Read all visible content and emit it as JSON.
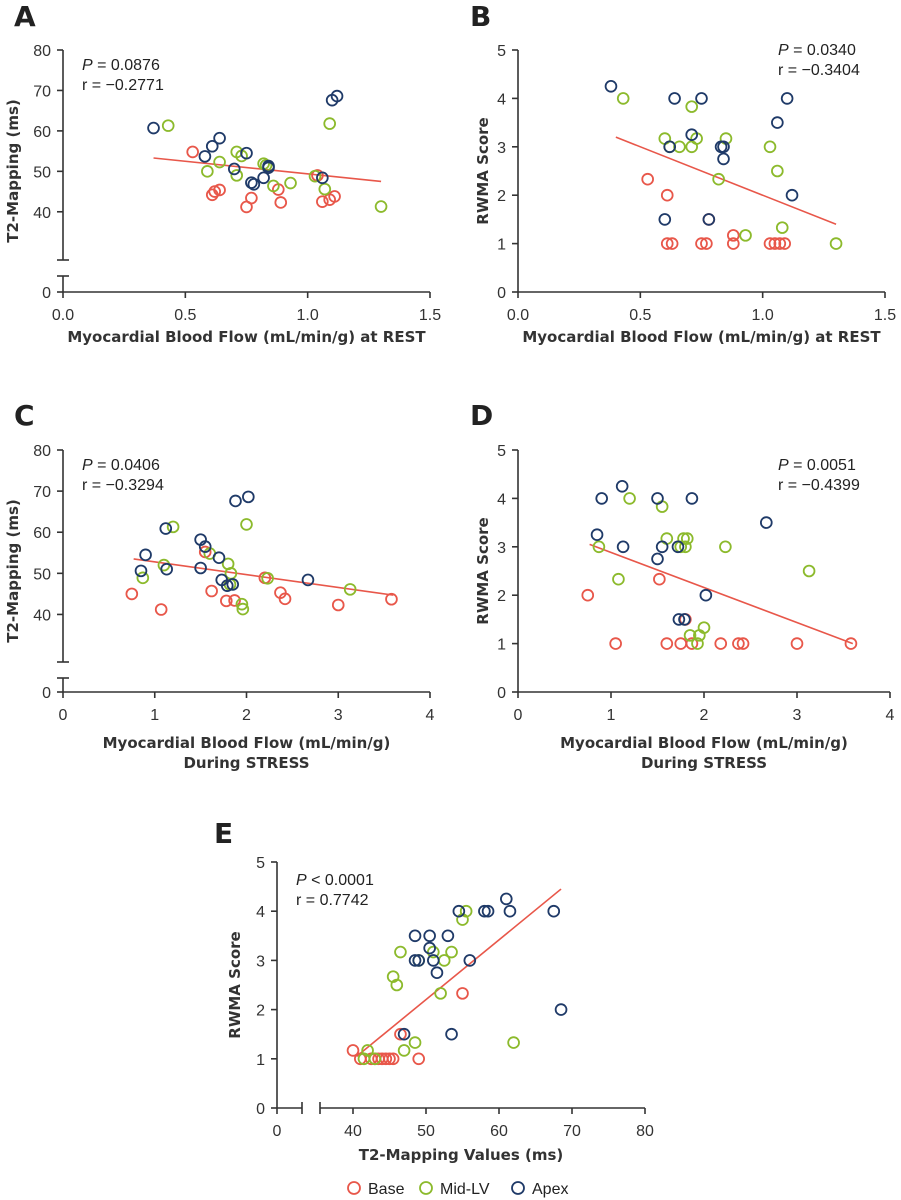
{
  "legend": {
    "title": "",
    "entries": [
      {
        "key": "base",
        "label": "Base"
      },
      {
        "key": "mid",
        "label": "Mid-LV"
      },
      {
        "key": "apex",
        "label": "Apex"
      }
    ]
  },
  "colors": {
    "base": "#e8574a",
    "mid": "#8cba2c",
    "apex": "#1f3a68",
    "fit": "#e8574a"
  },
  "chart_data": [
    {
      "id": "A",
      "type": "scatter",
      "panel_label": "A",
      "xlabel": "Myocardial Blood Flow (mL/min/g) at REST",
      "xlabel2": "",
      "ylabel": "T2-Mapping (ms)",
      "xlim": [
        0,
        1.5
      ],
      "ylim": [
        35,
        80
      ],
      "xticks": [
        0,
        0.5,
        1.0,
        1.5
      ],
      "xtick_labels": [
        "0.0",
        "0.5",
        "1.0",
        "1.5"
      ],
      "yticks": [
        40,
        50,
        60,
        70,
        80
      ],
      "ytick_labels": [
        "40",
        "50",
        "60",
        "70",
        "80"
      ],
      "y_zero_label": "0",
      "p_label": "P",
      "p_text": " = 0.0876",
      "r_text": "r = −0.2771",
      "fit": {
        "x1": 0.37,
        "y1": 53.3,
        "x2": 1.3,
        "y2": 47.5
      },
      "series": {
        "base": [
          [
            0.53,
            54.8
          ],
          [
            0.61,
            44.2
          ],
          [
            0.62,
            45.0
          ],
          [
            0.64,
            45.4
          ],
          [
            0.75,
            41.2
          ],
          [
            0.77,
            43.4
          ],
          [
            0.89,
            42.3
          ],
          [
            0.88,
            45.5
          ],
          [
            1.06,
            42.5
          ],
          [
            1.09,
            43.0
          ],
          [
            1.11,
            43.8
          ],
          [
            1.04,
            49.0
          ]
        ],
        "mid": [
          [
            0.43,
            61.3
          ],
          [
            0.59,
            50.0
          ],
          [
            0.64,
            52.3
          ],
          [
            0.71,
            49.0
          ],
          [
            0.71,
            54.8
          ],
          [
            0.73,
            53.8
          ],
          [
            0.82,
            51.9
          ],
          [
            0.86,
            46.4
          ],
          [
            0.93,
            47.1
          ],
          [
            1.03,
            48.8
          ],
          [
            1.07,
            45.6
          ],
          [
            1.09,
            61.8
          ],
          [
            1.3,
            41.3
          ],
          [
            0.83,
            51.5
          ]
        ],
        "apex": [
          [
            0.37,
            60.7
          ],
          [
            0.58,
            53.7
          ],
          [
            0.61,
            56.2
          ],
          [
            0.64,
            58.2
          ],
          [
            0.7,
            50.6
          ],
          [
            0.75,
            54.5
          ],
          [
            0.77,
            47.2
          ],
          [
            0.78,
            46.8
          ],
          [
            0.82,
            48.4
          ],
          [
            0.84,
            50.9
          ],
          [
            0.84,
            51.3
          ],
          [
            1.06,
            48.4
          ],
          [
            1.1,
            67.6
          ],
          [
            1.12,
            68.6
          ]
        ]
      }
    },
    {
      "id": "B",
      "type": "scatter",
      "panel_label": "B",
      "xlabel": "Myocardial Blood Flow (mL/min/g) at REST",
      "xlabel2": "",
      "ylabel": "RWMA Score",
      "xlim": [
        0,
        1.5
      ],
      "ylim": [
        0,
        5
      ],
      "xticks": [
        0,
        0.5,
        1.0,
        1.5
      ],
      "xtick_labels": [
        "0.0",
        "0.5",
        "1.0",
        "1.5"
      ],
      "yticks": [
        0,
        1,
        2,
        3,
        4,
        5
      ],
      "ytick_labels": [
        "0",
        "1",
        "2",
        "3",
        "4",
        "5"
      ],
      "p_label": "P",
      "p_text": " = 0.0340",
      "r_text": "r = −0.3404",
      "fit": {
        "x1": 0.4,
        "y1": 3.2,
        "x2": 1.3,
        "y2": 1.4
      },
      "series": {
        "base": [
          [
            0.53,
            2.33
          ],
          [
            0.61,
            2.0
          ],
          [
            0.61,
            1.0
          ],
          [
            0.63,
            1.0
          ],
          [
            0.75,
            1.0
          ],
          [
            0.77,
            1.0
          ],
          [
            0.78,
            1.5
          ],
          [
            0.88,
            1.0
          ],
          [
            0.88,
            1.17
          ],
          [
            1.03,
            1.0
          ],
          [
            1.05,
            1.0
          ],
          [
            1.07,
            1.0
          ],
          [
            1.09,
            1.0
          ]
        ],
        "mid": [
          [
            0.43,
            4.0
          ],
          [
            0.6,
            3.17
          ],
          [
            0.62,
            3.0
          ],
          [
            0.66,
            3.0
          ],
          [
            0.71,
            3.83
          ],
          [
            0.71,
            3.0
          ],
          [
            0.73,
            3.17
          ],
          [
            0.85,
            3.17
          ],
          [
            0.82,
            2.33
          ],
          [
            0.93,
            1.17
          ],
          [
            1.03,
            3.0
          ],
          [
            1.06,
            2.5
          ],
          [
            1.08,
            1.33
          ],
          [
            1.3,
            1.0
          ]
        ],
        "apex": [
          [
            0.38,
            4.25
          ],
          [
            0.6,
            1.5
          ],
          [
            0.62,
            3.0
          ],
          [
            0.64,
            4.0
          ],
          [
            0.71,
            3.25
          ],
          [
            0.75,
            4.0
          ],
          [
            0.78,
            1.5
          ],
          [
            0.83,
            3.0
          ],
          [
            0.84,
            3.0
          ],
          [
            0.84,
            2.75
          ],
          [
            1.06,
            3.5
          ],
          [
            1.1,
            4.0
          ],
          [
            1.12,
            2.0
          ]
        ]
      }
    },
    {
      "id": "C",
      "type": "scatter",
      "panel_label": "C",
      "xlabel": "Myocardial Blood Flow (mL/min/g)",
      "xlabel2": "During STRESS",
      "ylabel": "T2-Mapping (ms)",
      "xlim": [
        0,
        4
      ],
      "ylim": [
        35,
        80
      ],
      "xticks": [
        0,
        1,
        2,
        3,
        4
      ],
      "xtick_labels": [
        "0",
        "1",
        "2",
        "3",
        "4"
      ],
      "yticks": [
        40,
        50,
        60,
        70,
        80
      ],
      "ytick_labels": [
        "40",
        "50",
        "60",
        "70",
        "80"
      ],
      "y_zero_label": "0",
      "p_label": "P",
      "p_text": " = 0.0406",
      "r_text": "r = −0.3294",
      "fit": {
        "x1": 0.77,
        "y1": 53.5,
        "x2": 3.6,
        "y2": 44.7
      },
      "series": {
        "base": [
          [
            0.75,
            45.0
          ],
          [
            1.07,
            41.2
          ],
          [
            1.55,
            55.2
          ],
          [
            1.62,
            45.7
          ],
          [
            1.78,
            43.3
          ],
          [
            1.87,
            43.4
          ],
          [
            2.2,
            48.9
          ],
          [
            2.37,
            45.3
          ],
          [
            2.42,
            43.8
          ],
          [
            3.0,
            42.3
          ],
          [
            3.58,
            43.7
          ]
        ],
        "mid": [
          [
            0.87,
            48.9
          ],
          [
            1.1,
            52.0
          ],
          [
            1.2,
            61.3
          ],
          [
            1.6,
            54.8
          ],
          [
            1.8,
            52.3
          ],
          [
            1.82,
            47.3
          ],
          [
            1.83,
            50.0
          ],
          [
            1.95,
            42.5
          ],
          [
            1.96,
            41.3
          ],
          [
            2.0,
            61.9
          ],
          [
            2.23,
            48.8
          ],
          [
            3.13,
            46.1
          ]
        ],
        "apex": [
          [
            0.85,
            50.6
          ],
          [
            0.9,
            54.5
          ],
          [
            1.12,
            60.9
          ],
          [
            1.13,
            51.0
          ],
          [
            1.5,
            51.3
          ],
          [
            1.5,
            58.2
          ],
          [
            1.55,
            56.5
          ],
          [
            1.7,
            53.8
          ],
          [
            1.73,
            48.4
          ],
          [
            1.79,
            47.0
          ],
          [
            1.85,
            47.3
          ],
          [
            1.88,
            67.6
          ],
          [
            2.02,
            68.6
          ],
          [
            2.67,
            48.4
          ]
        ]
      }
    },
    {
      "id": "D",
      "type": "scatter",
      "panel_label": "D",
      "xlabel": "Myocardial Blood Flow (mL/min/g)",
      "xlabel2": "During STRESS",
      "ylabel": "RWMA Score",
      "xlim": [
        0,
        4
      ],
      "ylim": [
        0,
        5
      ],
      "xticks": [
        0,
        1,
        2,
        3,
        4
      ],
      "xtick_labels": [
        "0",
        "1",
        "2",
        "3",
        "4"
      ],
      "yticks": [
        0,
        1,
        2,
        3,
        4,
        5
      ],
      "ytick_labels": [
        "0",
        "1",
        "2",
        "3",
        "4",
        "5"
      ],
      "p_label": "P",
      "p_text": " = 0.0051",
      "r_text": "r = −0.4399",
      "fit": {
        "x1": 0.77,
        "y1": 3.05,
        "x2": 3.6,
        "y2": 1.0
      },
      "series": {
        "base": [
          [
            0.75,
            2.0
          ],
          [
            1.05,
            1.0
          ],
          [
            1.52,
            2.33
          ],
          [
            1.6,
            1.0
          ],
          [
            1.75,
            1.0
          ],
          [
            1.8,
            1.5
          ],
          [
            1.87,
            1.0
          ],
          [
            2.18,
            1.0
          ],
          [
            2.37,
            1.0
          ],
          [
            2.42,
            1.0
          ],
          [
            3.0,
            1.0
          ],
          [
            3.58,
            1.0
          ]
        ],
        "mid": [
          [
            0.87,
            3.0
          ],
          [
            1.08,
            2.33
          ],
          [
            1.2,
            4.0
          ],
          [
            1.55,
            3.83
          ],
          [
            1.6,
            3.17
          ],
          [
            1.75,
            3.0
          ],
          [
            1.78,
            3.17
          ],
          [
            1.8,
            3.0
          ],
          [
            1.82,
            3.17
          ],
          [
            1.85,
            1.17
          ],
          [
            1.93,
            1.0
          ],
          [
            1.95,
            1.17
          ],
          [
            2.0,
            1.33
          ],
          [
            2.23,
            3.0
          ],
          [
            3.13,
            2.5
          ]
        ],
        "apex": [
          [
            0.85,
            3.25
          ],
          [
            0.9,
            4.0
          ],
          [
            1.12,
            4.25
          ],
          [
            1.13,
            3.0
          ],
          [
            1.5,
            2.75
          ],
          [
            1.5,
            4.0
          ],
          [
            1.55,
            3.0
          ],
          [
            1.72,
            3.0
          ],
          [
            1.73,
            1.5
          ],
          [
            1.79,
            1.5
          ],
          [
            1.87,
            4.0
          ],
          [
            2.02,
            2.0
          ],
          [
            2.67,
            3.5
          ]
        ]
      }
    },
    {
      "id": "E",
      "type": "scatter",
      "panel_label": "E",
      "xlabel": "T2-Mapping Values (ms)",
      "xlabel2": "",
      "ylabel": "RWMA Score",
      "xlim": [
        0,
        80
      ],
      "xbreak_from": 35,
      "ylim": [
        0,
        5
      ],
      "xticks": [
        0,
        40,
        50,
        60,
        70,
        80
      ],
      "xtick_labels": [
        "0",
        "40",
        "50",
        "60",
        "70",
        "80"
      ],
      "yticks": [
        0,
        1,
        2,
        3,
        4,
        5
      ],
      "ytick_labels": [
        "0",
        "1",
        "2",
        "3",
        "4",
        "5"
      ],
      "p_label": "P",
      "p_text": " < 0.0001",
      "r_text": "r = 0.7742",
      "fit": {
        "x1": 40.5,
        "y1": 1.05,
        "x2": 68.5,
        "y2": 4.45
      },
      "series": {
        "base": [
          [
            40.0,
            1.17
          ],
          [
            41.0,
            1.0
          ],
          [
            42.5,
            1.0
          ],
          [
            43.0,
            1.0
          ],
          [
            43.5,
            1.0
          ],
          [
            44.0,
            1.0
          ],
          [
            44.5,
            1.0
          ],
          [
            45.0,
            1.0
          ],
          [
            45.5,
            1.0
          ],
          [
            46.5,
            1.5
          ],
          [
            49.0,
            1.0
          ],
          [
            55.0,
            2.33
          ]
        ],
        "mid": [
          [
            41.5,
            1.0
          ],
          [
            42.0,
            1.17
          ],
          [
            43.0,
            1.0
          ],
          [
            46.5,
            3.17
          ],
          [
            45.5,
            2.67
          ],
          [
            46.0,
            2.5
          ],
          [
            47.0,
            1.17
          ],
          [
            48.5,
            1.33
          ],
          [
            49.0,
            3.0
          ],
          [
            51.0,
            3.17
          ],
          [
            52.0,
            2.33
          ],
          [
            52.5,
            3.0
          ],
          [
            53.5,
            3.17
          ],
          [
            55.0,
            3.83
          ],
          [
            55.5,
            4.0
          ],
          [
            62.0,
            1.33
          ]
        ],
        "apex": [
          [
            47.0,
            1.5
          ],
          [
            48.5,
            3.5
          ],
          [
            48.5,
            3.0
          ],
          [
            49.0,
            3.0
          ],
          [
            50.5,
            3.5
          ],
          [
            50.5,
            3.25
          ],
          [
            51.0,
            3.0
          ],
          [
            51.5,
            2.75
          ],
          [
            53.0,
            3.5
          ],
          [
            53.5,
            1.5
          ],
          [
            54.5,
            4.0
          ],
          [
            56.0,
            3.0
          ],
          [
            58.0,
            4.0
          ],
          [
            58.5,
            4.0
          ],
          [
            61.0,
            4.25
          ],
          [
            61.5,
            4.0
          ],
          [
            67.5,
            4.0
          ],
          [
            68.5,
            2.0
          ]
        ]
      }
    }
  ]
}
